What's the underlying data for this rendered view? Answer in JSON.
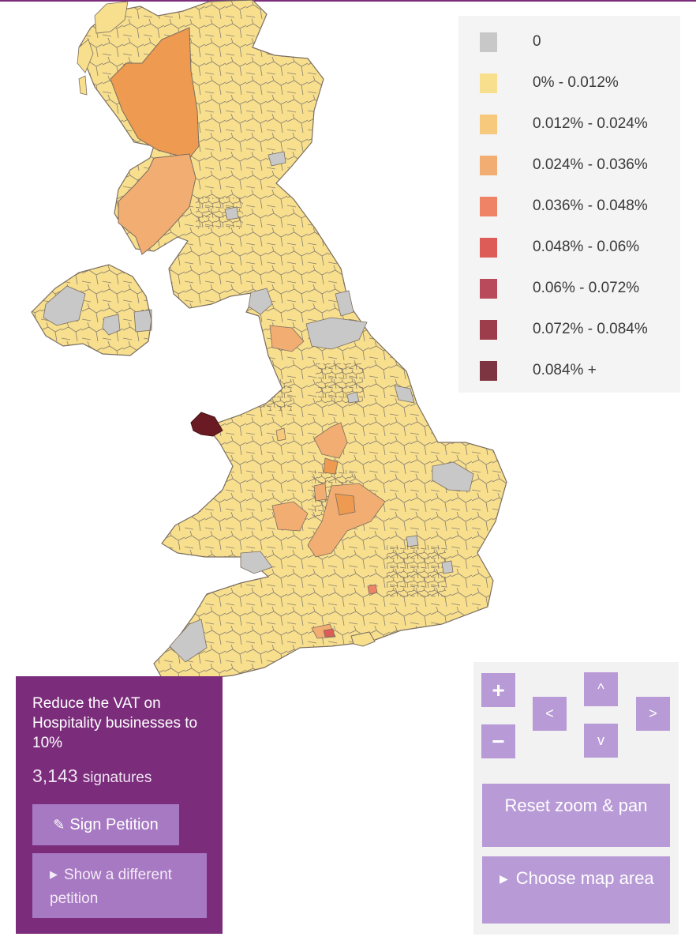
{
  "legend": {
    "items": [
      {
        "label": "0",
        "color": "#c8c8c8"
      },
      {
        "label": "0% - 0.012%",
        "color": "#f7df8e"
      },
      {
        "label": "0.012% - 0.024%",
        "color": "#f6c97c"
      },
      {
        "label": "0.024% - 0.036%",
        "color": "#f2ad72"
      },
      {
        "label": "0.036% - 0.048%",
        "color": "#ee8465"
      },
      {
        "label": "0.048% - 0.06%",
        "color": "#dd5c58"
      },
      {
        "label": "0.06% - 0.072%",
        "color": "#b84a5b"
      },
      {
        "label": "0.072% - 0.084%",
        "color": "#9d3d4c"
      },
      {
        "label": "0.084% +",
        "color": "#7d3541"
      }
    ]
  },
  "petition": {
    "title": "Reduce the VAT on Hospitality businesses to 10%",
    "count": "3,143",
    "count_unit": "signatures",
    "sign_label": "Sign Petition",
    "other_label": "Show a different petition"
  },
  "controls": {
    "zoom_in": "+",
    "zoom_out": "−",
    "pan_up": "^",
    "pan_down": "v",
    "pan_left": "<",
    "pan_right": ">",
    "reset_label": "Reset zoom & pan",
    "choose_label": "Choose map area"
  },
  "colors": {
    "accent": "#7b2d7c",
    "button": "#a779c2",
    "control": "#b89ad6",
    "land": "#f7df8e",
    "border": "#8a7f70"
  }
}
